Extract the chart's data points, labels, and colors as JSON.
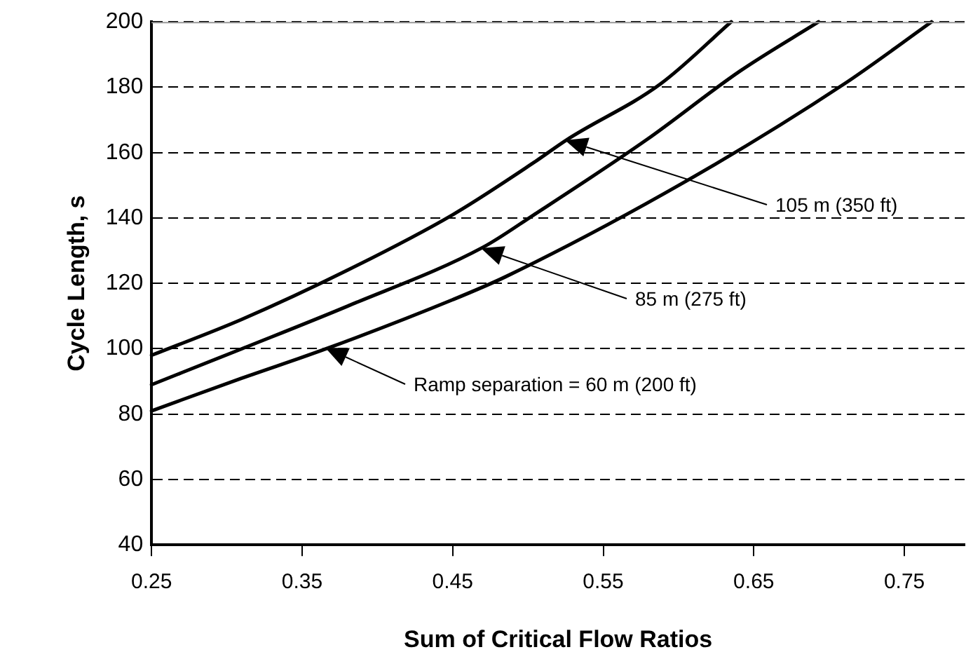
{
  "chart_data": {
    "type": "line",
    "xlabel": "Sum of Critical Flow Ratios",
    "ylabel": "Cycle Length, s",
    "series": [
      {
        "color": "#000000",
        "x": [
          0.25,
          0.31,
          0.38,
          0.45,
          0.504,
          0.526,
          0.588,
          0.635
        ],
        "values": [
          98,
          109,
          124,
          141,
          157,
          164,
          181,
          200
        ]
      },
      {
        "color": "#000000",
        "x": [
          0.25,
          0.31,
          0.38,
          0.47,
          0.504,
          0.579,
          0.641,
          0.693
        ],
        "values": [
          89,
          100,
          113,
          131,
          141,
          164,
          185,
          200
        ]
      },
      {
        "color": "#000000",
        "x": [
          0.25,
          0.31,
          0.366,
          0.45,
          0.485,
          0.604,
          0.71,
          0.768
        ],
        "values": [
          81,
          91,
          100,
          115,
          122,
          151,
          181,
          200
        ]
      }
    ],
    "xlim": [
      0.25,
      0.79
    ],
    "xticks": [
      0.25,
      0.35,
      0.45,
      0.55,
      0.65,
      0.75
    ],
    "ylim": [
      40,
      200
    ],
    "yticks": [
      40,
      60,
      80,
      100,
      120,
      140,
      160,
      180,
      200
    ],
    "grid": "y",
    "line_style": "solid",
    "marker": "none",
    "legend": false,
    "annotations": [
      "105 m (350 ft)",
      "85 m (275 ft)",
      "Ramp separation = 60 m (200 ft)"
    ]
  }
}
